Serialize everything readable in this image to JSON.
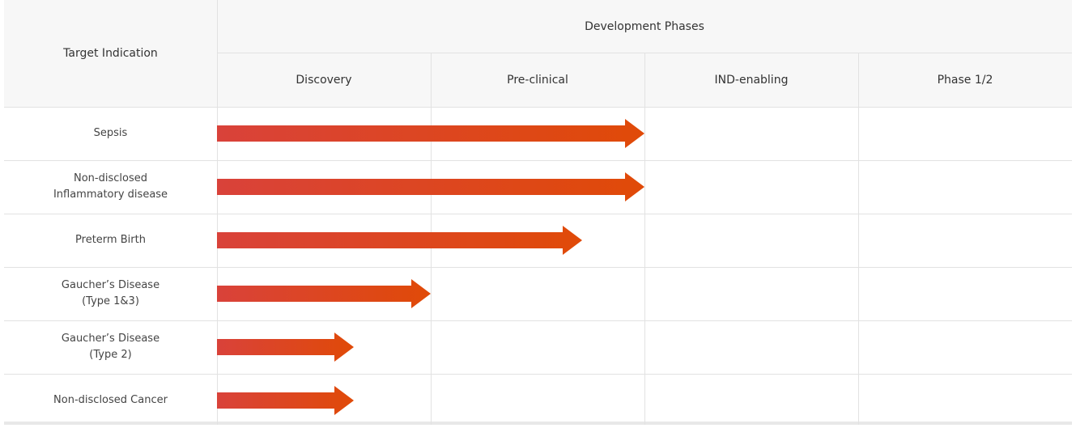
{
  "header": {
    "target_indication": "Target Indication",
    "development_phases": "Development Phases",
    "phases": [
      "Discovery",
      "Pre-clinical",
      "IND-enabling",
      "Phase 1/2"
    ]
  },
  "rows": [
    {
      "label": "Sepsis",
      "progress_phases": 2.0
    },
    {
      "label": "Non-disclosed\nInflammatory disease",
      "progress_phases": 2.0
    },
    {
      "label": "Preterm Birth",
      "progress_phases": 1.71
    },
    {
      "label": "Gaucher’s Disease\n(Type 1&3)",
      "progress_phases": 1.0
    },
    {
      "label": "Gaucher’s Disease\n(Type 2)",
      "progress_phases": 0.64
    },
    {
      "label": "Non-disclosed Cancer",
      "progress_phases": 0.64
    }
  ],
  "colors": {
    "arrow_start": "#d9423a",
    "arrow_end": "#e04a08",
    "header_bg": "#f7f7f7",
    "grid": "#e2e2e2"
  }
}
